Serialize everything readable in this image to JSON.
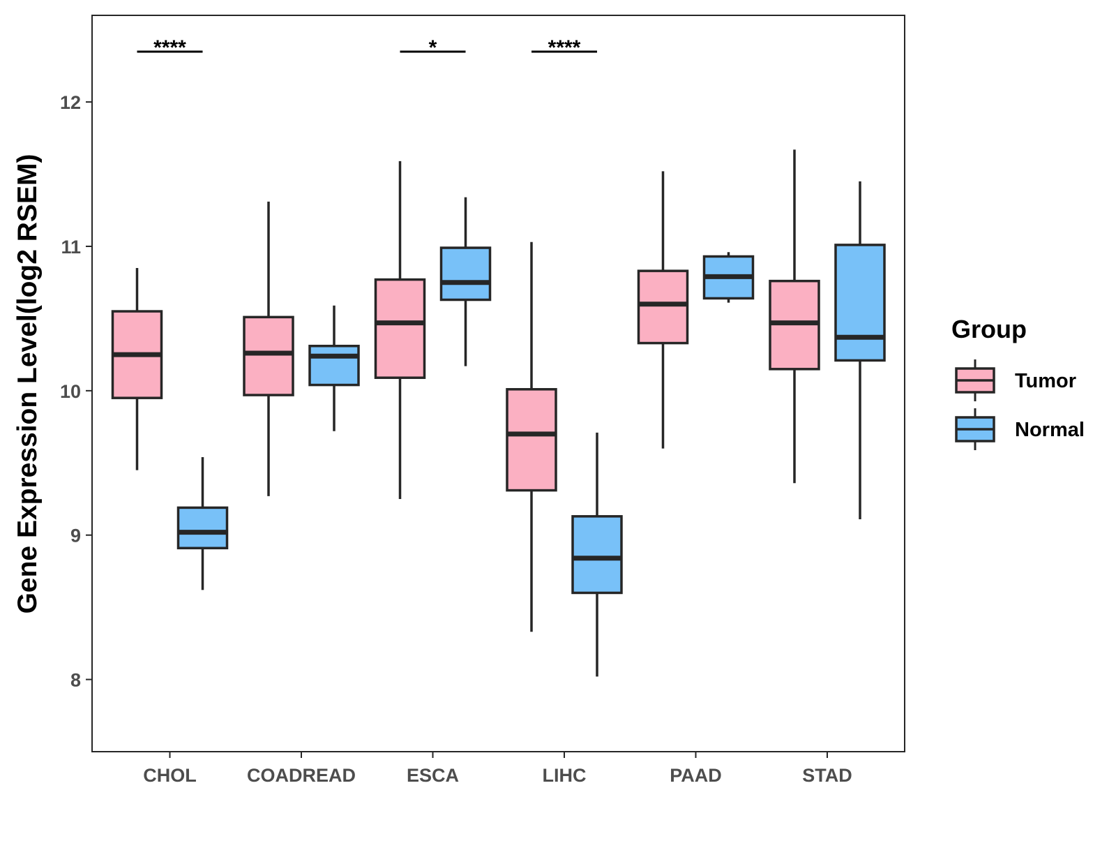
{
  "chart_data": {
    "type": "boxplot",
    "title": "",
    "xlabel": "",
    "ylabel": "Gene Expression Level(log2 RSEM)",
    "ylim": [
      7.5,
      12.6
    ],
    "yticks": [
      8,
      9,
      10,
      11,
      12
    ],
    "categories": [
      "CHOL",
      "COADREAD",
      "ESCA",
      "LIHC",
      "PAAD",
      "STAD"
    ],
    "legend": {
      "title": "Group",
      "position": "right",
      "entries": [
        "Tumor",
        "Normal"
      ]
    },
    "colors": {
      "Tumor": "#FBB0C2",
      "Normal": "#78C1F8",
      "outline": "#262626"
    },
    "series": [
      {
        "name": "Tumor",
        "boxes": [
          {
            "category": "CHOL",
            "whisker_low": 9.45,
            "q1": 9.95,
            "median": 10.25,
            "q3": 10.55,
            "whisker_high": 10.85
          },
          {
            "category": "COADREAD",
            "whisker_low": 9.27,
            "q1": 9.97,
            "median": 10.26,
            "q3": 10.51,
            "whisker_high": 11.31
          },
          {
            "category": "ESCA",
            "whisker_low": 9.25,
            "q1": 10.09,
            "median": 10.47,
            "q3": 10.77,
            "whisker_high": 11.59
          },
          {
            "category": "LIHC",
            "whisker_low": 8.33,
            "q1": 9.31,
            "median": 9.7,
            "q3": 10.01,
            "whisker_high": 11.03
          },
          {
            "category": "PAAD",
            "whisker_low": 9.6,
            "q1": 10.33,
            "median": 10.6,
            "q3": 10.83,
            "whisker_high": 11.52
          },
          {
            "category": "STAD",
            "whisker_low": 9.36,
            "q1": 10.15,
            "median": 10.47,
            "q3": 10.76,
            "whisker_high": 11.67
          }
        ]
      },
      {
        "name": "Normal",
        "boxes": [
          {
            "category": "CHOL",
            "whisker_low": 8.62,
            "q1": 8.91,
            "median": 9.02,
            "q3": 9.19,
            "whisker_high": 9.54
          },
          {
            "category": "COADREAD",
            "whisker_low": 9.72,
            "q1": 10.04,
            "median": 10.24,
            "q3": 10.31,
            "whisker_high": 10.59
          },
          {
            "category": "ESCA",
            "whisker_low": 10.17,
            "q1": 10.63,
            "median": 10.75,
            "q3": 10.99,
            "whisker_high": 11.34
          },
          {
            "category": "LIHC",
            "whisker_low": 8.02,
            "q1": 8.6,
            "median": 8.84,
            "q3": 9.13,
            "whisker_high": 9.71
          },
          {
            "category": "PAAD",
            "whisker_low": 10.61,
            "q1": 10.64,
            "median": 10.79,
            "q3": 10.93,
            "whisker_high": 10.96
          },
          {
            "category": "STAD",
            "whisker_low": 9.11,
            "q1": 10.21,
            "median": 10.37,
            "q3": 11.01,
            "whisker_high": 11.45
          }
        ]
      }
    ],
    "significance": [
      {
        "category": "CHOL",
        "label": "****"
      },
      {
        "category": "ESCA",
        "label": "*"
      },
      {
        "category": "LIHC",
        "label": "****"
      }
    ]
  }
}
